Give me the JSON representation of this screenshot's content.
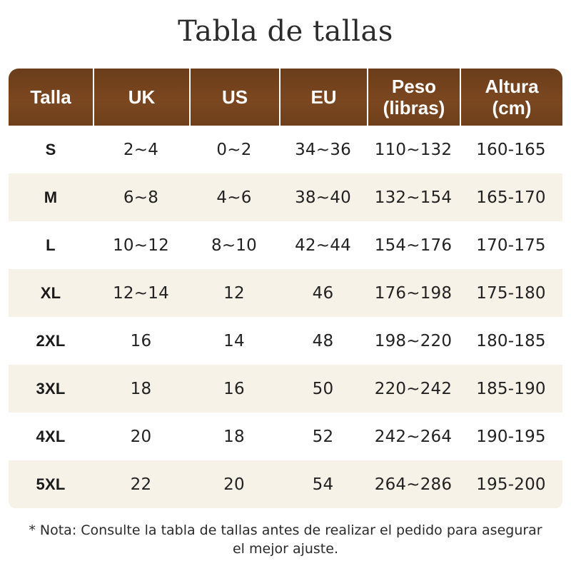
{
  "title": "Tabla de tallas",
  "header": {
    "size": "Talla",
    "uk": "UK",
    "us": "US",
    "eu": "EU",
    "weight": "Peso\n(libras)",
    "height": "Altura\n(cm)"
  },
  "rows": [
    {
      "size": "S",
      "uk": "2~4",
      "us": "0~2",
      "eu": "34~36",
      "weight": "110~132",
      "height": "160-165"
    },
    {
      "size": "M",
      "uk": "6~8",
      "us": "4~6",
      "eu": "38~40",
      "weight": "132~154",
      "height": "165-170"
    },
    {
      "size": "L",
      "uk": "10~12",
      "us": "8~10",
      "eu": "42~44",
      "weight": "154~176",
      "height": "170-175"
    },
    {
      "size": "XL",
      "uk": "12~14",
      "us": "12",
      "eu": "46",
      "weight": "176~198",
      "height": "175-180"
    },
    {
      "size": "2XL",
      "uk": "16",
      "us": "14",
      "eu": "48",
      "weight": "198~220",
      "height": "180-185"
    },
    {
      "size": "3XL",
      "uk": "18",
      "us": "16",
      "eu": "50",
      "weight": "220~242",
      "height": "185-190"
    },
    {
      "size": "4XL",
      "uk": "20",
      "us": "18",
      "eu": "52",
      "weight": "242~264",
      "height": "190-195"
    },
    {
      "size": "5XL",
      "uk": "22",
      "us": "20",
      "eu": "54",
      "weight": "264~286",
      "height": "195-200"
    }
  ],
  "note": "* Nota: Consulte la tabla de tallas antes de realizar el pedido para asegurar el mejor ajuste.",
  "colors": {
    "header_brown": "#74431e",
    "stripe": "#f7f2e8"
  }
}
